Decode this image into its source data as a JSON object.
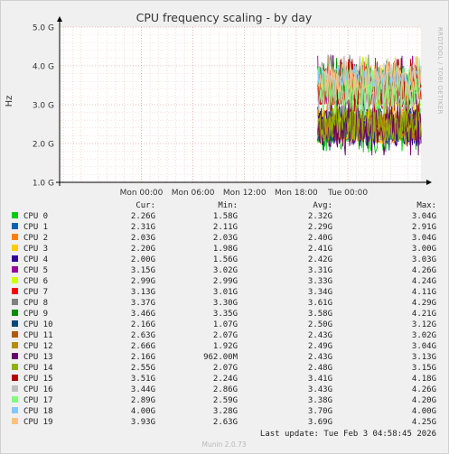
{
  "chart_data": {
    "type": "line",
    "title": "CPU frequency scaling - by day",
    "ylabel": "Hz",
    "y_scale": "linear",
    "ylim": [
      1.0,
      5.0
    ],
    "y_ticks": [
      {
        "value": 1.0,
        "label": "1.0 G"
      },
      {
        "value": 2.0,
        "label": "2.0 G"
      },
      {
        "value": 3.0,
        "label": "3.0 G"
      },
      {
        "value": 4.0,
        "label": "4.0 G"
      },
      {
        "value": 5.0,
        "label": "5.0 G"
      }
    ],
    "x_ticks": [
      "Mon 00:00",
      "Mon 06:00",
      "Mon 12:00",
      "Mon 18:00",
      "Tue 00:00"
    ],
    "x_range_hours": [
      -9.5,
      32.5
    ],
    "data_start_hour": 20.5,
    "data_end_hour": 32.5,
    "grid": true,
    "side_label": "RRDTOOL / TOBI OETIKER",
    "table_headers": [
      "Cur:",
      "Min:",
      "Avg:",
      "Max:"
    ],
    "series": [
      {
        "name": "CPU 0",
        "color": "#00cc00",
        "cur": "2.26G",
        "min": "1.58G",
        "avg": "2.32G",
        "max": "3.04G"
      },
      {
        "name": "CPU 1",
        "color": "#0066b3",
        "cur": "2.31G",
        "min": "2.11G",
        "avg": "2.29G",
        "max": "2.91G"
      },
      {
        "name": "CPU 2",
        "color": "#ff8000",
        "cur": "2.03G",
        "min": "2.03G",
        "avg": "2.40G",
        "max": "3.04G"
      },
      {
        "name": "CPU 3",
        "color": "#ffcc00",
        "cur": "2.20G",
        "min": "1.98G",
        "avg": "2.41G",
        "max": "3.00G"
      },
      {
        "name": "CPU 4",
        "color": "#330099",
        "cur": "2.00G",
        "min": "1.56G",
        "avg": "2.42G",
        "max": "3.03G"
      },
      {
        "name": "CPU 5",
        "color": "#990099",
        "cur": "3.15G",
        "min": "3.02G",
        "avg": "3.31G",
        "max": "4.26G"
      },
      {
        "name": "CPU 6",
        "color": "#ccff00",
        "cur": "2.99G",
        "min": "2.99G",
        "avg": "3.33G",
        "max": "4.24G"
      },
      {
        "name": "CPU 7",
        "color": "#ff0000",
        "cur": "3.13G",
        "min": "3.01G",
        "avg": "3.34G",
        "max": "4.11G"
      },
      {
        "name": "CPU 8",
        "color": "#808080",
        "cur": "3.37G",
        "min": "3.30G",
        "avg": "3.61G",
        "max": "4.29G"
      },
      {
        "name": "CPU 9",
        "color": "#008f00",
        "cur": "3.46G",
        "min": "3.35G",
        "avg": "3.58G",
        "max": "4.21G"
      },
      {
        "name": "CPU 10",
        "color": "#00487d",
        "cur": "2.16G",
        "min": "1.07G",
        "avg": "2.50G",
        "max": "3.12G"
      },
      {
        "name": "CPU 11",
        "color": "#b35a00",
        "cur": "2.63G",
        "min": "2.07G",
        "avg": "2.43G",
        "max": "3.02G"
      },
      {
        "name": "CPU 12",
        "color": "#b38f00",
        "cur": "2.66G",
        "min": "1.92G",
        "avg": "2.49G",
        "max": "3.04G"
      },
      {
        "name": "CPU 13",
        "color": "#6b006b",
        "cur": "2.16G",
        "min": "962.00M",
        "avg": "2.43G",
        "max": "3.13G"
      },
      {
        "name": "CPU 14",
        "color": "#8fb300",
        "cur": "2.55G",
        "min": "2.07G",
        "avg": "2.48G",
        "max": "3.15G"
      },
      {
        "name": "CPU 15",
        "color": "#b30000",
        "cur": "3.51G",
        "min": "2.24G",
        "avg": "3.41G",
        "max": "4.18G"
      },
      {
        "name": "CPU 16",
        "color": "#bebebe",
        "cur": "3.44G",
        "min": "2.86G",
        "avg": "3.43G",
        "max": "4.26G"
      },
      {
        "name": "CPU 17",
        "color": "#80ff80",
        "cur": "2.89G",
        "min": "2.59G",
        "avg": "3.38G",
        "max": "4.20G"
      },
      {
        "name": "CPU 18",
        "color": "#80c9ff",
        "cur": "4.00G",
        "min": "3.28G",
        "avg": "3.70G",
        "max": "4.00G"
      },
      {
        "name": "CPU 19",
        "color": "#ffc080",
        "cur": "3.93G",
        "min": "2.63G",
        "avg": "3.69G",
        "max": "4.25G"
      }
    ],
    "last_update": "Last update: Tue Feb  3 04:58:45 2026",
    "footer": "Munin 2.0.73"
  }
}
